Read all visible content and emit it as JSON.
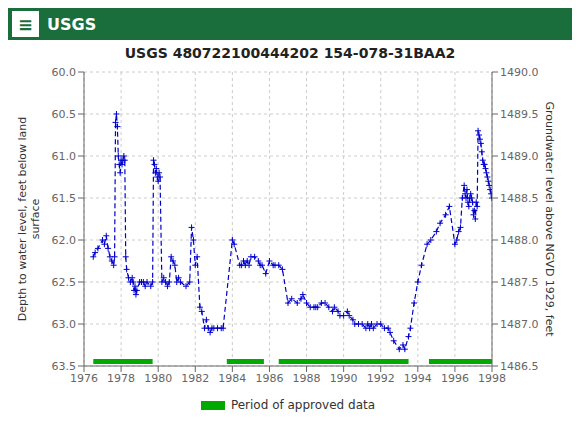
{
  "chart_data": {
    "type": "line",
    "title": "USGS 480722100444202 154-078-31BAA2",
    "annotations": [
      "≡",
      "USGS"
    ],
    "y_label": "Depth to water level, feet below land\nsurface",
    "y2_label": "Groundwater level above NGVD 1929, feet",
    "color": "#0000cc",
    "line_style": "dashed",
    "marker": "plus",
    "x": [
      1976.5,
      1976.6,
      1976.75,
      1977.0,
      1977.1,
      1977.2,
      1977.3,
      1977.4,
      1977.5,
      1977.6,
      1977.65,
      1977.7,
      1977.75,
      1977.8,
      1977.85,
      1977.9,
      1977.95,
      1978.0,
      1978.05,
      1978.1,
      1978.15,
      1978.2,
      1978.25,
      1978.3,
      1978.4,
      1978.5,
      1978.6,
      1978.65,
      1978.7,
      1978.75,
      1978.8,
      1978.85,
      1979.0,
      1979.1,
      1979.2,
      1979.3,
      1979.4,
      1979.6,
      1979.7,
      1979.75,
      1979.8,
      1979.85,
      1979.9,
      1979.95,
      1980.0,
      1980.05,
      1980.1,
      1980.2,
      1980.3,
      1980.4,
      1980.5,
      1980.6,
      1980.7,
      1980.8,
      1980.9,
      1981.0,
      1981.1,
      1981.2,
      1981.5,
      1981.7,
      1981.8,
      1981.9,
      1982.0,
      1982.1,
      1982.25,
      1982.35,
      1982.5,
      1982.6,
      1982.7,
      1982.8,
      1982.9,
      1983.0,
      1983.2,
      1983.4,
      1983.5,
      1984.0,
      1984.1,
      1984.4,
      1984.5,
      1984.6,
      1984.7,
      1984.8,
      1984.9,
      1985.0,
      1985.2,
      1985.4,
      1985.5,
      1985.6,
      1985.8,
      1986.0,
      1986.2,
      1986.3,
      1986.5,
      1986.7,
      1987.0,
      1987.2,
      1987.5,
      1987.7,
      1987.8,
      1988.0,
      1988.2,
      1988.4,
      1988.5,
      1988.6,
      1988.8,
      1989.0,
      1989.2,
      1989.4,
      1989.5,
      1989.7,
      1989.8,
      1990.0,
      1990.2,
      1990.3,
      1990.5,
      1990.6,
      1990.8,
      1991.0,
      1991.2,
      1991.3,
      1991.4,
      1991.5,
      1991.6,
      1991.8,
      1992.0,
      1992.2,
      1992.4,
      1992.5,
      1992.7,
      1993.0,
      1993.2,
      1993.3,
      1993.5,
      1993.6,
      1993.8,
      1994.0,
      1994.2,
      1994.5,
      1994.7,
      1995.0,
      1995.2,
      1995.5,
      1995.7,
      1996.0,
      1996.1,
      1996.2,
      1996.3,
      1996.4,
      1996.5,
      1996.55,
      1996.6,
      1996.65,
      1996.7,
      1996.75,
      1996.8,
      1996.85,
      1996.9,
      1996.95,
      1997.0,
      1997.05,
      1997.1,
      1997.15,
      1997.2,
      1997.25,
      1997.3,
      1997.35,
      1997.4,
      1997.45,
      1997.5,
      1997.55,
      1997.6,
      1997.65,
      1997.7,
      1997.75,
      1997.8,
      1997.85,
      1997.9,
      1997.95,
      1998.0
    ],
    "values": [
      62.2,
      62.15,
      62.1,
      62.0,
      62.05,
      61.95,
      62.1,
      62.2,
      62.25,
      62.3,
      62.2,
      60.6,
      60.5,
      60.65,
      61.0,
      61.1,
      61.2,
      61.05,
      61.1,
      61.05,
      61.0,
      61.05,
      62.2,
      62.35,
      62.45,
      62.5,
      62.45,
      62.5,
      62.6,
      62.55,
      62.65,
      62.6,
      62.5,
      62.5,
      62.5,
      62.55,
      62.5,
      62.55,
      62.5,
      61.05,
      61.1,
      61.2,
      61.15,
      61.25,
      61.3,
      61.2,
      61.25,
      62.5,
      62.45,
      62.5,
      62.55,
      62.5,
      62.2,
      62.25,
      62.3,
      62.5,
      62.45,
      62.5,
      62.55,
      62.5,
      61.85,
      62.0,
      62.3,
      62.2,
      62.8,
      62.85,
      63.05,
      62.95,
      63.05,
      63.1,
      63.05,
      63.05,
      63.05,
      63.05,
      63.05,
      62.0,
      62.05,
      62.3,
      62.3,
      62.25,
      62.3,
      62.25,
      62.3,
      62.2,
      62.2,
      62.25,
      62.3,
      62.3,
      62.4,
      62.25,
      62.3,
      62.3,
      62.3,
      62.35,
      62.75,
      62.7,
      62.75,
      62.7,
      62.65,
      62.75,
      62.8,
      62.8,
      62.8,
      62.8,
      62.75,
      62.75,
      62.8,
      62.85,
      62.8,
      62.85,
      62.9,
      62.9,
      62.85,
      62.9,
      62.95,
      63.0,
      63.0,
      63.0,
      63.05,
      63.0,
      63.05,
      63.0,
      63.05,
      63.0,
      63.0,
      63.05,
      63.05,
      63.1,
      63.2,
      63.3,
      63.25,
      63.3,
      63.15,
      63.05,
      62.75,
      62.5,
      62.3,
      62.05,
      62.0,
      61.9,
      61.8,
      61.7,
      61.6,
      62.05,
      62.0,
      61.9,
      61.85,
      61.5,
      61.35,
      61.45,
      61.5,
      61.4,
      61.55,
      61.6,
      61.5,
      61.45,
      61.5,
      61.55,
      61.7,
      61.65,
      61.75,
      61.55,
      61.6,
      60.7,
      60.75,
      60.8,
      60.85,
      60.95,
      61.05,
      61.1,
      61.1,
      61.15,
      61.2,
      61.25,
      61.3,
      61.35,
      61.4,
      61.45,
      61.5
    ],
    "approved_periods": {
      "name": "Period of approved data",
      "color": "#00aa00",
      "ranges": [
        [
          1976.5,
          1979.7
        ],
        [
          1983.7,
          1985.7
        ],
        [
          1986.5,
          1993.5
        ],
        [
          1994.6,
          1998.0
        ]
      ]
    },
    "xlim": [
      1976,
      1998
    ],
    "xticks": [
      1976,
      1978,
      1980,
      1982,
      1984,
      1986,
      1988,
      1990,
      1992,
      1994,
      1996,
      1998
    ],
    "ylim": [
      63.5,
      60.0
    ],
    "yticks": [
      {
        "value": 60.0,
        "label": "60.0"
      },
      60.5,
      {
        "value": 61.0,
        "label": "61.0"
      },
      61.5,
      {
        "value": 62.0,
        "label": "62.0"
      },
      62.5,
      {
        "value": 63.0,
        "label": "63.0"
      },
      63.5
    ],
    "y2lim": [
      1486.5,
      1490.0
    ],
    "y2ticks": [
      {
        "value": 1490.0,
        "label": "1490.0"
      },
      1489.5,
      {
        "value": 1489.0,
        "label": "1489.0"
      },
      1488.5,
      {
        "value": 1488.0,
        "label": "1488.0"
      },
      1487.5,
      {
        "value": 1487.0,
        "label": "1487.0"
      },
      1486.5
    ],
    "grid": true,
    "legend": "bottom"
  }
}
